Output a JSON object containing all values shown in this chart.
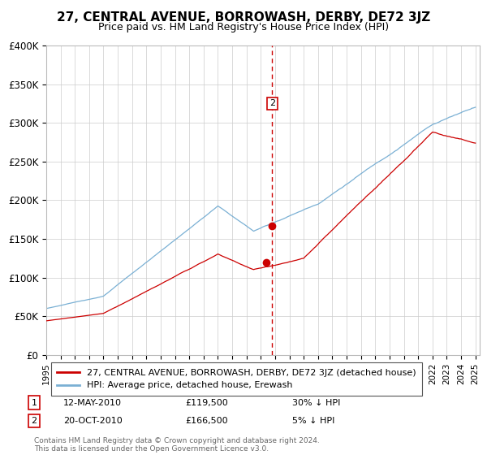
{
  "title": "27, CENTRAL AVENUE, BORROWASH, DERBY, DE72 3JZ",
  "subtitle": "Price paid vs. HM Land Registry's House Price Index (HPI)",
  "legend_line1": "27, CENTRAL AVENUE, BORROWASH, DERBY, DE72 3JZ (detached house)",
  "legend_line2": "HPI: Average price, detached house, Erewash",
  "footer": "Contains HM Land Registry data © Crown copyright and database right 2024.\nThis data is licensed under the Open Government Licence v3.0.",
  "transaction1_date": "12-MAY-2010",
  "transaction1_price": "£119,500",
  "transaction1_hpi": "30% ↓ HPI",
  "transaction2_date": "20-OCT-2010",
  "transaction2_price": "£166,500",
  "transaction2_hpi": "5% ↓ HPI",
  "red_color": "#cc0000",
  "blue_color": "#7ab0d4",
  "dashed_color": "#cc0000",
  "ylim": [
    0,
    400000
  ],
  "yticks": [
    0,
    50000,
    100000,
    150000,
    200000,
    250000,
    300000,
    350000,
    400000
  ],
  "xlim_start": 1995,
  "xlim_end": 2025
}
